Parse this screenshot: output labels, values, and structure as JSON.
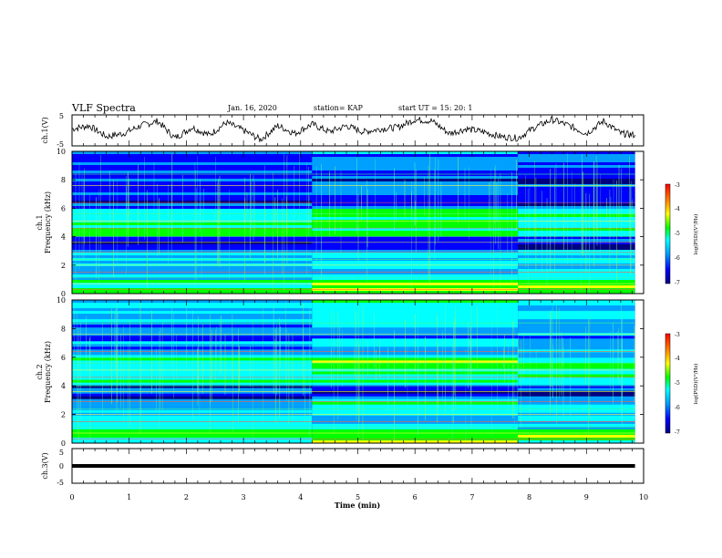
{
  "header": {
    "title": "VLF Spectra",
    "date": "Jan. 16, 2020",
    "station": "station= KAP",
    "start_ut": "start  UT =   15: 20: 1"
  },
  "chart_data": [
    {
      "type": "line",
      "panel": "ch1-voltage",
      "ylabel": "ch.1(V)",
      "ylim": [
        -5,
        5
      ],
      "yticks": [
        "5",
        "-5"
      ],
      "xlim": [
        0,
        10
      ],
      "x": [
        0.0,
        0.3,
        0.6,
        0.9,
        1.2,
        1.5,
        1.8,
        2.1,
        2.4,
        2.7,
        3.0,
        3.3,
        3.6,
        3.9,
        4.2,
        4.5,
        4.8,
        5.1,
        5.4,
        5.7,
        6.0,
        6.3,
        6.6,
        6.9,
        7.2,
        7.5,
        7.8,
        8.1,
        8.4,
        8.7,
        9.0,
        9.3,
        9.6,
        9.85
      ],
      "y": [
        0.5,
        1.5,
        -2.0,
        -1.0,
        1.5,
        3.0,
        -2.5,
        1.0,
        -1.5,
        2.5,
        0.0,
        -3.0,
        1.5,
        -1.0,
        2.0,
        -0.5,
        1.5,
        -0.5,
        0.5,
        1.0,
        3.5,
        3.0,
        -1.0,
        0.5,
        -0.5,
        -2.0,
        -2.5,
        1.0,
        3.5,
        1.5,
        -1.0,
        3.0,
        -1.0,
        -1.5
      ]
    },
    {
      "type": "heatmap",
      "panel": "ch1-spectrogram",
      "ylabel": "ch.1 Frequency (kHz)",
      "ylim": [
        0,
        10
      ],
      "yticks": [
        "0",
        "2",
        "4",
        "6",
        "8",
        "10"
      ],
      "xlim": [
        0,
        10
      ],
      "colorbar": {
        "label": "log(PSD)(V²/Hz)",
        "range": [
          -7,
          -3
        ],
        "ticks": [
          "-3",
          "-4",
          "-5",
          "-6",
          "-7"
        ]
      }
    },
    {
      "type": "heatmap",
      "panel": "ch2-spectrogram",
      "ylabel": "ch.2 Frequency (kHz)",
      "ylim": [
        0,
        10
      ],
      "yticks": [
        "0",
        "2",
        "4",
        "6",
        "8",
        "10"
      ],
      "xlim": [
        0,
        10
      ],
      "colorbar": {
        "label": "log(PSD)(V²/Hz)",
        "range": [
          -7,
          -3
        ],
        "ticks": [
          "-3",
          "-4",
          "-5",
          "-6",
          "-7"
        ]
      }
    },
    {
      "type": "line",
      "panel": "ch3-voltage",
      "ylabel": "ch.3(V)",
      "ylim": [
        -5,
        5
      ],
      "yticks": [
        "5",
        "0",
        "-5"
      ],
      "xlim": [
        0,
        10
      ],
      "x": [
        0,
        9.85
      ],
      "y": [
        0,
        0
      ]
    }
  ],
  "xaxis": {
    "label": "Time (min)",
    "ticks": [
      "0",
      "1",
      "2",
      "3",
      "4",
      "5",
      "6",
      "7",
      "8",
      "9",
      "10"
    ]
  },
  "colors": {
    "cmap": [
      "#000080",
      "#0000ff",
      "#00a0ff",
      "#00ffff",
      "#00ff00",
      "#ffff00",
      "#ff8000",
      "#ff0000"
    ]
  }
}
